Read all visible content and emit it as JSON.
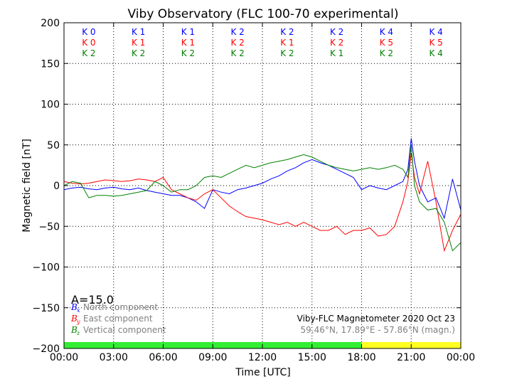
{
  "chart_data": {
    "type": "line",
    "title": "Viby Observatory (FLC 100-70 experimental)",
    "xlabel": "Time [UTC]",
    "ylabel": "Magnetic field [nT]",
    "xlim": [
      0,
      24
    ],
    "ylim": [
      -200,
      200
    ],
    "x_ticks": [
      {
        "v": 0,
        "label": "00:00"
      },
      {
        "v": 3,
        "label": "03:00"
      },
      {
        "v": 6,
        "label": "06:00"
      },
      {
        "v": 9,
        "label": "09:00"
      },
      {
        "v": 12,
        "label": "12:00"
      },
      {
        "v": 15,
        "label": "15:00"
      },
      {
        "v": 18,
        "label": "18:00"
      },
      {
        "v": 21,
        "label": "21:00"
      },
      {
        "v": 24,
        "label": "00:00"
      }
    ],
    "y_ticks": [
      {
        "v": 200,
        "label": "200"
      },
      {
        "v": 150,
        "label": "150"
      },
      {
        "v": 100,
        "label": "100"
      },
      {
        "v": 50,
        "label": "50"
      },
      {
        "v": 0,
        "label": "0"
      },
      {
        "v": -50,
        "label": "−50"
      },
      {
        "v": -100,
        "label": "−100"
      },
      {
        "v": -150,
        "label": "−150"
      },
      {
        "v": -200,
        "label": "−200"
      }
    ],
    "grid": true,
    "amplitude_label": "A=15.0",
    "info_line1": "Viby-FLC Magnetometer 2020 Oct 23",
    "info_line2": "59.46°N, 17.89°E - 57.86°N (magn.)",
    "k_indices": [
      {
        "x": 1.5,
        "values": [
          "K 0",
          "K 0",
          "K 2"
        ]
      },
      {
        "x": 4.5,
        "values": [
          "K 1",
          "K 1",
          "K 2"
        ]
      },
      {
        "x": 7.5,
        "values": [
          "K 1",
          "K 1",
          "K 2"
        ]
      },
      {
        "x": 10.5,
        "values": [
          "K 2",
          "K 2",
          "K 2"
        ]
      },
      {
        "x": 13.5,
        "values": [
          "K 2",
          "K 1",
          "K 2"
        ]
      },
      {
        "x": 16.5,
        "values": [
          "K 2",
          "K 2",
          "K 1"
        ]
      },
      {
        "x": 19.5,
        "values": [
          "K 4",
          "K 5",
          "K 2"
        ]
      },
      {
        "x": 22.5,
        "values": [
          "K 4",
          "K 5",
          "K 4"
        ]
      }
    ],
    "status_bar": [
      {
        "from": 0,
        "to": 18,
        "color": "#33ee33"
      },
      {
        "from": 18,
        "to": 24,
        "color": "#ffff22"
      }
    ],
    "series": [
      {
        "name": "North component",
        "symbol": "B",
        "subscript": "x",
        "color": "#0000ff",
        "x": [
          0,
          0.5,
          1,
          1.5,
          2,
          2.5,
          3,
          3.5,
          4,
          4.5,
          5,
          5.5,
          6,
          6.5,
          7,
          7.5,
          8,
          8.5,
          9,
          9.5,
          10,
          10.5,
          11,
          11.5,
          12,
          12.5,
          13,
          13.5,
          14,
          14.5,
          15,
          15.5,
          16,
          16.5,
          17,
          17.5,
          18,
          18.5,
          19,
          19.5,
          20,
          20.5,
          20.8,
          21,
          21.2,
          21.5,
          22,
          22.5,
          23,
          23.5,
          24
        ],
        "y": [
          -5,
          -3,
          -2,
          -4,
          -5,
          -3,
          -2,
          -4,
          -5,
          -3,
          -6,
          -8,
          -10,
          -12,
          -12,
          -15,
          -20,
          -28,
          -5,
          -8,
          -10,
          -5,
          -3,
          0,
          3,
          8,
          12,
          18,
          22,
          28,
          32,
          28,
          25,
          20,
          15,
          10,
          -5,
          0,
          -3,
          -5,
          0,
          5,
          20,
          58,
          30,
          0,
          -20,
          -15,
          -40,
          8,
          -30
        ]
      },
      {
        "name": "East component",
        "symbol": "B",
        "subscript": "y",
        "color": "#ff0000",
        "x": [
          0,
          0.5,
          1,
          1.5,
          2,
          2.5,
          3,
          3.5,
          4,
          4.5,
          5,
          5.5,
          6,
          6.5,
          7,
          7.5,
          8,
          8.5,
          9,
          9.5,
          10,
          10.5,
          11,
          11.5,
          12,
          12.5,
          13,
          13.5,
          14,
          14.5,
          15,
          15.5,
          16,
          16.5,
          17,
          17.5,
          18,
          18.5,
          19,
          19.5,
          20,
          20.5,
          20.8,
          21,
          21.2,
          21.5,
          22,
          22.5,
          23,
          23.5,
          24
        ],
        "y": [
          5,
          3,
          2,
          3,
          5,
          7,
          6,
          5,
          6,
          8,
          7,
          5,
          10,
          -5,
          -10,
          -15,
          -18,
          -10,
          -5,
          -15,
          -25,
          -32,
          -38,
          -40,
          -42,
          -45,
          -48,
          -45,
          -50,
          -45,
          -50,
          -55,
          -55,
          -50,
          -60,
          -55,
          -55,
          -52,
          -62,
          -60,
          -50,
          -20,
          5,
          40,
          10,
          -10,
          30,
          -20,
          -80,
          -55,
          -35
        ]
      },
      {
        "name": "Vertical component",
        "symbol": "B",
        "subscript": "z",
        "color": "#008000",
        "x": [
          0,
          0.5,
          1,
          1.5,
          2,
          2.5,
          3,
          3.5,
          4,
          4.5,
          5,
          5.5,
          6,
          6.5,
          7,
          7.5,
          8,
          8.5,
          9,
          9.5,
          10,
          10.5,
          11,
          11.5,
          12,
          12.5,
          13,
          13.5,
          14,
          14.5,
          15,
          15.5,
          16,
          16.5,
          17,
          17.5,
          18,
          18.5,
          19,
          19.5,
          20,
          20.5,
          20.8,
          21,
          21.2,
          21.5,
          22,
          22.5,
          23,
          23.5,
          24
        ],
        "y": [
          0,
          5,
          3,
          -15,
          -12,
          -12,
          -13,
          -12,
          -10,
          -8,
          -6,
          5,
          0,
          -8,
          -5,
          -5,
          0,
          10,
          12,
          10,
          15,
          20,
          25,
          22,
          25,
          28,
          30,
          32,
          35,
          38,
          35,
          30,
          25,
          22,
          20,
          18,
          20,
          22,
          20,
          22,
          25,
          20,
          10,
          50,
          0,
          -20,
          -30,
          -28,
          -45,
          -80,
          -70
        ]
      }
    ]
  }
}
